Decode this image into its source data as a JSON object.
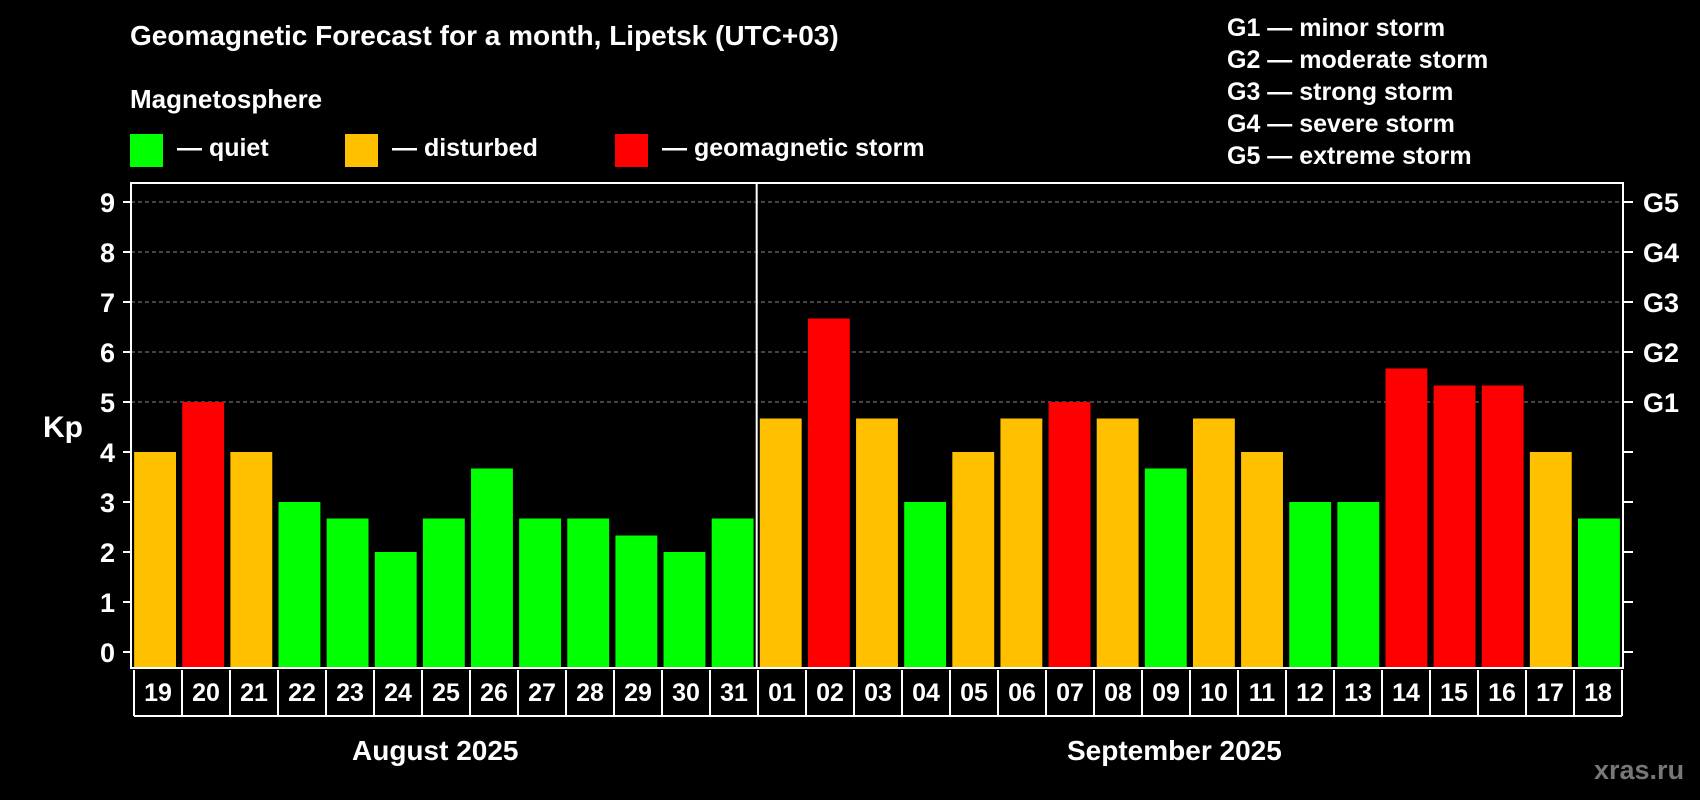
{
  "title": "Geomagnetic Forecast for a month, Lipetsk (UTC+03)",
  "magnetosphere_label": "Magnetosphere",
  "legend": [
    {
      "label": "— quiet",
      "color": "#00ff00"
    },
    {
      "label": "— disturbed",
      "color": "#ffc000"
    },
    {
      "label": "— geomagnetic storm",
      "color": "#ff0000"
    }
  ],
  "storm_scale": [
    "G1 — minor storm",
    "G2 — moderate storm",
    "G3 — strong storm",
    "G4 — severe storm",
    "G5 — extreme storm"
  ],
  "months": {
    "first": "August 2025",
    "second": "September 2025"
  },
  "watermark": "xras.ru",
  "colors": {
    "quiet": "#00ff00",
    "disturbed": "#ffc000",
    "storm": "#ff0000",
    "background": "#000000",
    "grid": "#888888"
  },
  "chart_data": {
    "type": "bar",
    "title": "Geomagnetic Forecast for a month, Lipetsk (UTC+03)",
    "ylabel": "Kp",
    "ylim": [
      0,
      9
    ],
    "yticks": [
      "0",
      "1",
      "2",
      "3",
      "4",
      "5",
      "6",
      "7",
      "8",
      "9"
    ],
    "right_ticks": [
      {
        "kp": 5,
        "label": "G1"
      },
      {
        "kp": 6,
        "label": "G2"
      },
      {
        "kp": 7,
        "label": "G3"
      },
      {
        "kp": 8,
        "label": "G4"
      },
      {
        "kp": 9,
        "label": "G5"
      }
    ],
    "categories": [
      "19",
      "20",
      "21",
      "22",
      "23",
      "24",
      "25",
      "26",
      "27",
      "28",
      "29",
      "30",
      "31",
      "01",
      "02",
      "03",
      "04",
      "05",
      "06",
      "07",
      "08",
      "09",
      "10",
      "11",
      "12",
      "13",
      "14",
      "15",
      "16",
      "17",
      "18"
    ],
    "values": [
      4,
      5,
      4,
      3,
      2.67,
      2,
      2.67,
      3.67,
      2.67,
      2.67,
      2.33,
      2,
      2.67,
      4.67,
      6.67,
      4.67,
      3,
      4,
      4.67,
      5,
      4.67,
      3.67,
      4.67,
      4,
      3,
      3,
      5.67,
      5.33,
      5.33,
      4,
      2.67
    ],
    "levels": [
      "disturbed",
      "storm",
      "disturbed",
      "quiet",
      "quiet",
      "quiet",
      "quiet",
      "quiet",
      "quiet",
      "quiet",
      "quiet",
      "quiet",
      "quiet",
      "disturbed",
      "storm",
      "disturbed",
      "quiet",
      "disturbed",
      "disturbed",
      "storm",
      "disturbed",
      "quiet",
      "disturbed",
      "disturbed",
      "quiet",
      "quiet",
      "storm",
      "storm",
      "storm",
      "disturbed",
      "quiet"
    ],
    "month_split_index": 13
  }
}
